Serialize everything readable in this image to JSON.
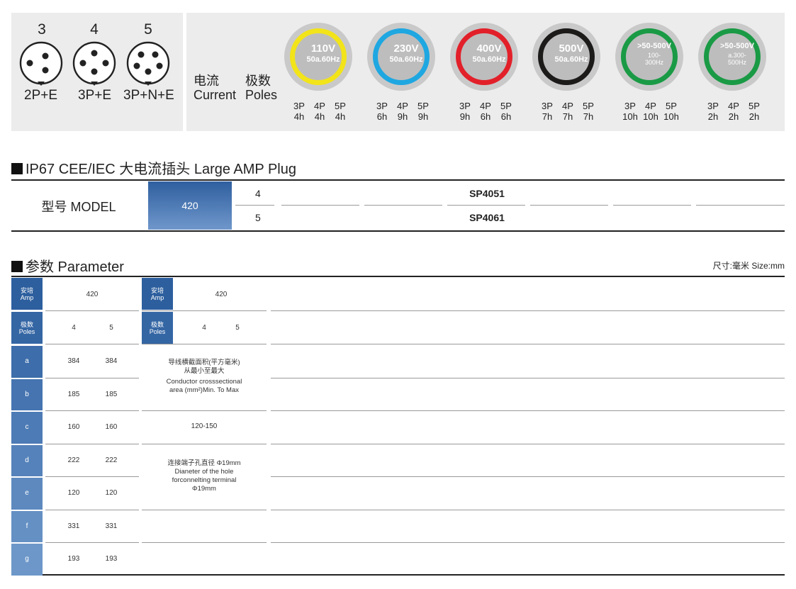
{
  "plug_types": [
    {
      "poles": "3",
      "type": "2P+E"
    },
    {
      "poles": "4",
      "type": "3P+E"
    },
    {
      "poles": "5",
      "type": "3P+N+E"
    }
  ],
  "legend": {
    "current_cn": "电流",
    "current_en": "Current",
    "poles_cn": "极数",
    "poles_en": "Poles"
  },
  "voltages": [
    {
      "voltage": "110V",
      "freq": "50a.60Hz",
      "color": "#f2e419",
      "hours": [
        "4h",
        "4h",
        "4h"
      ]
    },
    {
      "voltage": "230V",
      "freq": "50a.60Hz",
      "color": "#1ea7e1",
      "hours": [
        "6h",
        "9h",
        "9h"
      ]
    },
    {
      "voltage": "400V",
      "freq": "50a.60Hz",
      "color": "#e2202a",
      "hours": [
        "9h",
        "6h",
        "6h"
      ]
    },
    {
      "voltage": "500V",
      "freq": "50a.60Hz",
      "color": "#1d1a1a",
      "hours": [
        "7h",
        "7h",
        "7h"
      ]
    },
    {
      "voltage": ">50-500V",
      "freq": "100-",
      "freq2": "300Hz",
      "color": "#1a9a45",
      "hours": [
        "10h",
        "10h",
        "10h"
      ]
    },
    {
      "voltage": ">50-500V",
      "freq": "a.300-",
      "freq2": "500Hz",
      "color": "#1a9a45",
      "hours": [
        "2h",
        "2h",
        "2h"
      ]
    }
  ],
  "pole_labels": [
    "3P",
    "4P",
    "5P"
  ],
  "section1": {
    "title": "IP67 CEE/IEC 大电流插头  Large AMP Plug"
  },
  "model_table": {
    "label": "型号 MODEL",
    "amp": "420",
    "rows": [
      {
        "poles": "4",
        "code": "SP4051"
      },
      {
        "poles": "5",
        "code": "SP4061"
      }
    ]
  },
  "section2": {
    "title": "参数 Parameter",
    "size_note": "尺寸:毫米  Size:mm"
  },
  "param_table": {
    "amp_cn": "安培",
    "amp_en": "Amp",
    "poles_cn": "极数",
    "poles_en": "Poles",
    "amp_value": "420",
    "pole_values": [
      "4",
      "5"
    ],
    "rows": [
      {
        "dim": "a",
        "v4": "384",
        "v5": "384"
      },
      {
        "dim": "b",
        "v4": "185",
        "v5": "185"
      },
      {
        "dim": "c",
        "v4": "160",
        "v5": "160"
      },
      {
        "dim": "d",
        "v4": "222",
        "v5": "222"
      },
      {
        "dim": "e",
        "v4": "120",
        "v5": "120"
      },
      {
        "dim": "f",
        "v4": "331",
        "v5": "331"
      },
      {
        "dim": "g",
        "v4": "193",
        "v5": "193"
      }
    ],
    "right_amp_value": "420",
    "right_pole_values": [
      "4",
      "5"
    ],
    "conductor_cn": "导线横截面积(平方毫米)",
    "conductor_cn2": "从最小至最大",
    "conductor_en": "Conductor crosssectional",
    "conductor_en2": "area (mm²)Min. To Max",
    "conductor_value": "120-150",
    "hole_cn": "连接端子孔直径 Φ19mm",
    "hole_en": "Dianeter of the hole",
    "hole_en2": "forconnelting terminal",
    "hole_value": "Φ19mm"
  }
}
